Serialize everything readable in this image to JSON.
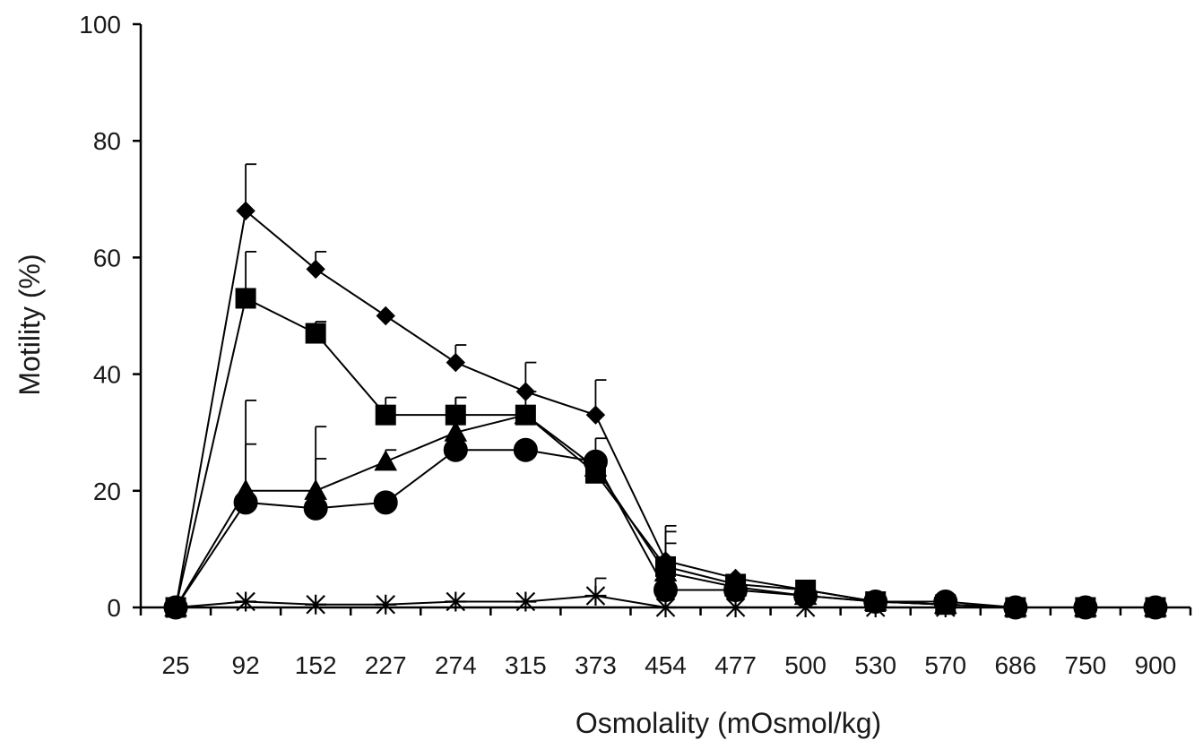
{
  "chart_data": {
    "type": "line",
    "title": "",
    "xlabel": "Osmolality (mOsmol/kg)",
    "ylabel": "Motility (%)",
    "categories": [
      "25",
      "92",
      "152",
      "227",
      "274",
      "315",
      "373",
      "454",
      "477",
      "500",
      "530",
      "570",
      "686",
      "750",
      "900"
    ],
    "ylim": [
      0,
      100
    ],
    "yticks": [
      "0",
      "20",
      "40",
      "60",
      "80",
      "100"
    ],
    "grid": false,
    "legend": "none",
    "series": [
      {
        "marker": "diamond",
        "values": [
          0,
          68,
          58,
          50,
          42,
          37,
          33,
          8,
          5,
          3,
          1,
          0.5,
          0,
          0,
          0
        ],
        "error": [
          0,
          8,
          3,
          0,
          3,
          5,
          6,
          6,
          0,
          0,
          0,
          0,
          0,
          0,
          0
        ]
      },
      {
        "marker": "square",
        "values": [
          0,
          53,
          47,
          33,
          33,
          33,
          23,
          7,
          4,
          3,
          1,
          0.5,
          0,
          0,
          0
        ],
        "error": [
          0,
          8,
          2,
          3,
          3,
          4,
          0,
          6,
          0,
          0,
          0,
          0,
          0,
          0,
          0
        ]
      },
      {
        "marker": "triangle",
        "values": [
          0,
          20,
          20,
          25,
          30,
          33,
          24,
          6,
          3.5,
          2,
          1,
          0.5,
          0,
          0,
          0
        ],
        "error": [
          0,
          15.5,
          11,
          2,
          6,
          0,
          5,
          5,
          0,
          0,
          0,
          0,
          0,
          0,
          0
        ]
      },
      {
        "marker": "circle",
        "values": [
          0,
          18,
          17,
          18,
          27,
          27,
          25,
          3,
          3,
          2,
          1,
          1,
          0,
          0,
          0
        ],
        "error": [
          0,
          10,
          8.5,
          0,
          0,
          0,
          0,
          0,
          0,
          0,
          0,
          0,
          0,
          0,
          0
        ]
      },
      {
        "marker": "star",
        "values": [
          0,
          1,
          0.5,
          0.5,
          1,
          1,
          2,
          0,
          0,
          0,
          0,
          0,
          0,
          0,
          0
        ],
        "error": [
          0,
          0,
          0,
          0,
          0,
          0,
          3,
          0,
          0,
          0,
          0,
          0,
          0,
          0,
          0
        ]
      }
    ]
  }
}
